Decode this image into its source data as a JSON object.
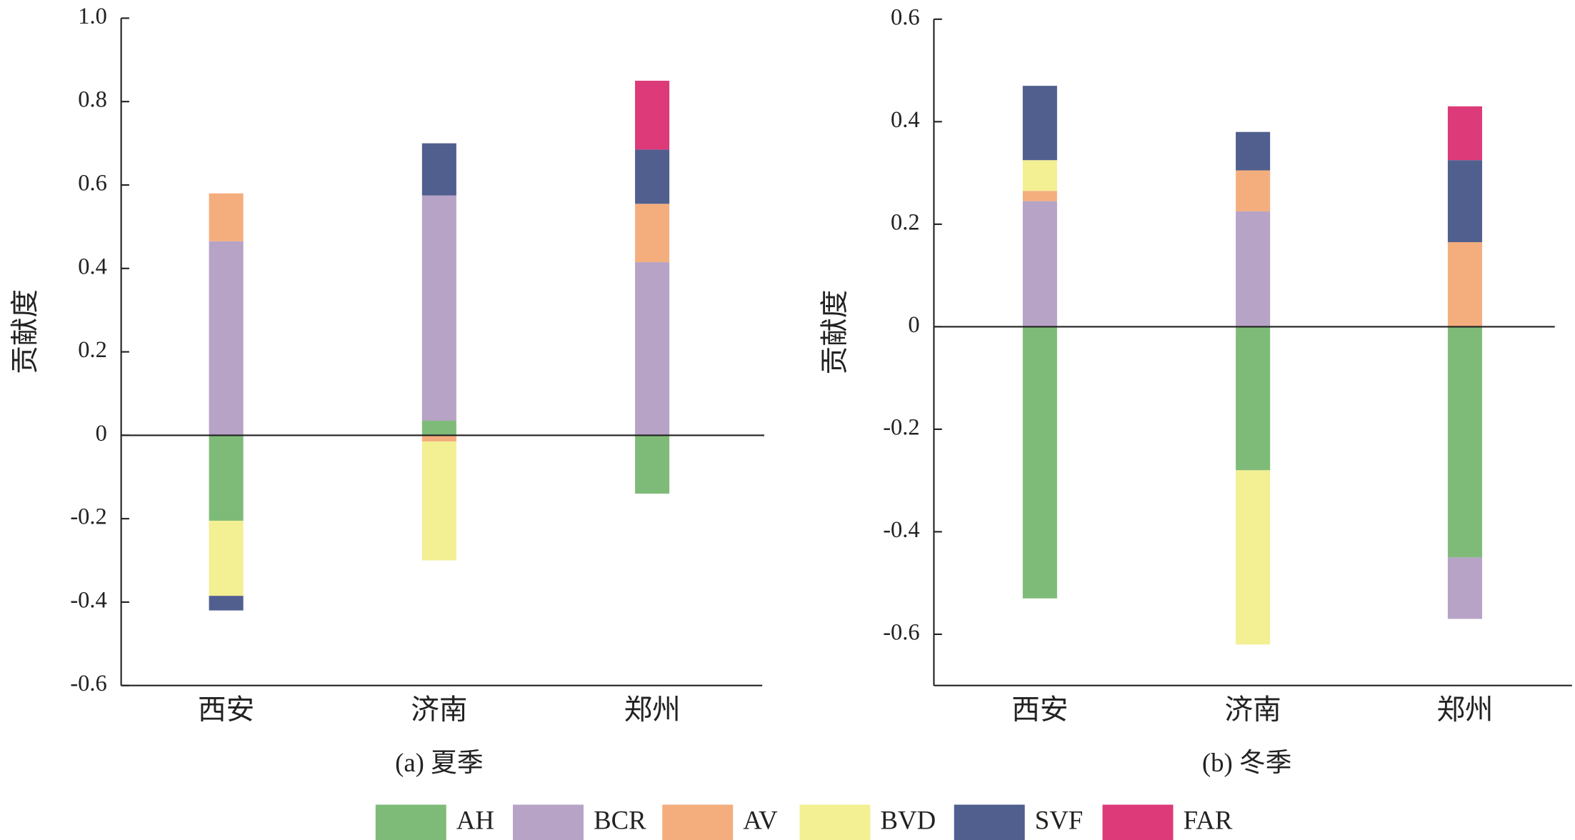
{
  "chart_data": [
    {
      "type": "bar",
      "stacked": true,
      "title": "(a) 夏季",
      "y_label": "贡献度",
      "categories": [
        "西安",
        "济南",
        "郑州"
      ],
      "series": [
        {
          "name": "AH",
          "color": "#7fbb78",
          "values": [
            -0.205,
            0.035,
            -0.14
          ]
        },
        {
          "name": "BCR",
          "color": "#b6a3c6",
          "values": [
            0.465,
            0.54,
            0.415
          ]
        },
        {
          "name": "AV",
          "color": "#f4ae7e",
          "values": [
            0.115,
            -0.015,
            0.14
          ]
        },
        {
          "name": "BVD",
          "color": "#f3ef93",
          "values": [
            -0.18,
            -0.285,
            null
          ]
        },
        {
          "name": "SVF",
          "color": "#515f8f",
          "values": [
            -0.035,
            0.125,
            0.13
          ]
        },
        {
          "name": "FAR",
          "color": "#dc3a78",
          "values": [
            null,
            null,
            0.165
          ]
        }
      ],
      "ylim": [
        -0.6,
        1.0
      ],
      "yticks": [
        -0.6,
        -0.4,
        -0.2,
        {
          "value": 0,
          "label": "0"
        },
        0.2,
        0.4,
        0.6,
        0.8,
        {
          "value": 1,
          "label": "1.0"
        }
      ]
    },
    {
      "type": "bar",
      "stacked": true,
      "title": "(b) 冬季",
      "y_label": "贡献度",
      "categories": [
        "西安",
        "济南",
        "郑州"
      ],
      "series": [
        {
          "name": "AH",
          "color": "#7fbb78",
          "values": [
            -0.53,
            -0.28,
            -0.45
          ]
        },
        {
          "name": "BCR",
          "color": "#b6a3c6",
          "values": [
            0.245,
            0.225,
            -0.12
          ]
        },
        {
          "name": "AV",
          "color": "#f4ae7e",
          "values": [
            0.02,
            0.08,
            0.165
          ]
        },
        {
          "name": "BVD",
          "color": "#f3ef93",
          "values": [
            0.06,
            -0.34,
            null
          ]
        },
        {
          "name": "SVF",
          "color": "#515f8f",
          "values": [
            0.145,
            0.075,
            0.16
          ]
        },
        {
          "name": "FAR",
          "color": "#dc3a78",
          "values": [
            null,
            null,
            0.105
          ]
        }
      ],
      "ylim": [
        -0.7,
        0.6
      ],
      "yticks": [
        -0.6,
        -0.4,
        -0.2,
        {
          "value": 0,
          "label": "0"
        },
        0.2,
        0.4,
        0.6
      ]
    }
  ]
}
